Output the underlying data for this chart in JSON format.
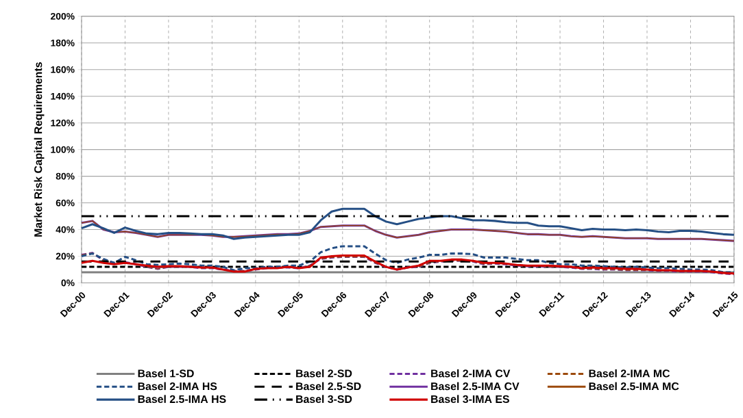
{
  "chart_data": {
    "type": "line",
    "ylabel": "Market Risk Capital Requirements",
    "x": [
      "2000-12",
      "2001-03",
      "2001-06",
      "2001-09",
      "2001-12",
      "2002-03",
      "2002-06",
      "2002-09",
      "2002-12",
      "2003-03",
      "2003-06",
      "2003-09",
      "2003-12",
      "2004-03",
      "2004-06",
      "2004-09",
      "2004-12",
      "2005-03",
      "2005-06",
      "2005-09",
      "2005-12",
      "2006-03",
      "2006-06",
      "2006-09",
      "2006-12",
      "2007-03",
      "2007-06",
      "2007-09",
      "2007-12",
      "2008-03",
      "2008-06",
      "2008-09",
      "2008-12",
      "2009-03",
      "2009-06",
      "2009-09",
      "2009-12",
      "2010-03",
      "2010-06",
      "2010-09",
      "2010-12",
      "2011-03",
      "2011-06",
      "2011-09",
      "2011-12",
      "2012-03",
      "2012-06",
      "2012-09",
      "2012-12",
      "2013-03",
      "2013-06",
      "2013-09",
      "2013-12",
      "2014-03",
      "2014-06",
      "2014-09",
      "2014-12",
      "2015-03",
      "2015-06",
      "2015-09",
      "2015-12"
    ],
    "xlim": [
      "2000-12",
      "2015-12"
    ],
    "xticks": [
      {
        "value": "2000-12",
        "label": "Dec-00"
      },
      {
        "value": "2001-12",
        "label": "Dec-01"
      },
      {
        "value": "2002-12",
        "label": "Dec-02"
      },
      {
        "value": "2003-12",
        "label": "Dec-03"
      },
      {
        "value": "2004-12",
        "label": "Dec-04"
      },
      {
        "value": "2005-12",
        "label": "Dec-05"
      },
      {
        "value": "2006-12",
        "label": "Dec-06"
      },
      {
        "value": "2007-12",
        "label": "Dec-07"
      },
      {
        "value": "2008-12",
        "label": "Dec-08"
      },
      {
        "value": "2009-12",
        "label": "Dec-09"
      },
      {
        "value": "2010-12",
        "label": "Dec-10"
      },
      {
        "value": "2011-12",
        "label": "Dec-11"
      },
      {
        "value": "2012-12",
        "label": "Dec-12"
      },
      {
        "value": "2013-12",
        "label": "Dec-13"
      },
      {
        "value": "2014-12",
        "label": "Dec-14"
      },
      {
        "value": "2015-12",
        "label": "Dec-15"
      }
    ],
    "ylim": [
      0,
      200
    ],
    "yticks": [
      {
        "value": 0,
        "label": "0%"
      },
      {
        "value": 20,
        "label": "20%"
      },
      {
        "value": 40,
        "label": "40%"
      },
      {
        "value": 60,
        "label": "60%"
      },
      {
        "value": 80,
        "label": "80%"
      },
      {
        "value": 100,
        "label": "100%"
      },
      {
        "value": 120,
        "label": "120%"
      },
      {
        "value": 140,
        "label": "140%"
      },
      {
        "value": 160,
        "label": "160%"
      },
      {
        "value": 180,
        "label": "180%"
      },
      {
        "value": 200,
        "label": "200%"
      }
    ],
    "grid": true,
    "legend": "bottom",
    "marker": "none",
    "series": [
      {
        "name": "Basel 1-SD",
        "color": "#808080",
        "line_style": "solid",
        "x": [
          "2000-12",
          "2015-12"
        ],
        "values": [
          8,
          8
        ]
      },
      {
        "name": "Basel 2-SD",
        "color": "#000000",
        "line_style": "dashed",
        "x": [
          "2000-12",
          "2015-12"
        ],
        "values": [
          12,
          12
        ]
      },
      {
        "name": "Basel 2-IMA CV",
        "color": "#7030a0",
        "line_style": "dashed",
        "values": [
          21,
          22.5,
          17,
          15,
          15.5,
          14,
          12,
          10.5,
          12,
          12,
          12,
          11,
          11,
          10,
          9,
          9,
          10,
          11,
          11.5,
          11.5,
          11,
          13,
          18,
          19,
          19.5,
          19.5,
          19.5,
          15,
          12,
          10,
          11.5,
          12,
          15,
          16,
          16.5,
          16.5,
          16,
          14,
          14.5,
          14,
          13,
          12.5,
          12.5,
          12,
          12,
          11.5,
          10.5,
          10.5,
          10,
          10,
          9.5,
          9.5,
          9.5,
          9,
          9,
          8.5,
          8.5,
          8.5,
          8,
          7,
          6.5
        ]
      },
      {
        "name": "Basel 2-IMA MC",
        "color": "#9c4a0c",
        "line_style": "dashed",
        "values": [
          21,
          22.5,
          17,
          15,
          15.5,
          14,
          12,
          10.5,
          12,
          12,
          12,
          11,
          11,
          10,
          9,
          9,
          10,
          11,
          11.5,
          11.5,
          11,
          13,
          18,
          19,
          19.5,
          19.5,
          19.5,
          15,
          12,
          10,
          11.5,
          12,
          15,
          16,
          16.5,
          16.5,
          16,
          14,
          14.5,
          14,
          13,
          12.5,
          12.5,
          12,
          12,
          11.5,
          10.5,
          10.5,
          10,
          10,
          9.5,
          9.5,
          9.5,
          9,
          9,
          8.5,
          8.5,
          8.5,
          8,
          7,
          6.5
        ]
      },
      {
        "name": "Basel 2-IMA HS",
        "color": "#254f85",
        "line_style": "dashed",
        "values": [
          20,
          22,
          18,
          15,
          19.5,
          17,
          14,
          13.5,
          14,
          14.5,
          14,
          13,
          13,
          12,
          9.5,
          11,
          11,
          12,
          12,
          13,
          13,
          16,
          23,
          26,
          27.5,
          27.5,
          27.5,
          22,
          17,
          15,
          17.5,
          19,
          21,
          21,
          22,
          22,
          21.5,
          19,
          19,
          19,
          18,
          17,
          17,
          15,
          14,
          14,
          13,
          13,
          12.5,
          12,
          11.5,
          12,
          11.5,
          11,
          11,
          10.5,
          10,
          10,
          9.5,
          8,
          8
        ]
      },
      {
        "name": "Basel 2.5-SD",
        "color": "#000000",
        "line_style": "long dashed",
        "x": [
          "2000-12",
          "2015-12"
        ],
        "values": [
          16,
          16
        ]
      },
      {
        "name": "Basel 2.5-IMA CV",
        "color": "#7030a0",
        "line_style": "solid",
        "values": [
          45,
          46.5,
          40,
          38,
          38.5,
          37.5,
          36,
          34.5,
          36,
          36,
          36,
          36,
          35.5,
          34.5,
          34.5,
          35,
          35.5,
          36,
          36.5,
          36.5,
          37,
          39,
          42,
          42.5,
          43,
          43,
          43,
          39,
          36,
          34,
          35,
          36,
          38,
          39,
          40,
          40,
          40,
          39.5,
          39,
          38.5,
          37.5,
          36.5,
          36.5,
          36,
          36,
          35,
          34.5,
          35,
          34.5,
          34,
          33.5,
          33.5,
          33.5,
          33,
          33,
          33,
          33,
          33,
          32.5,
          32,
          31.5
        ]
      },
      {
        "name": "Basel 2.5-IMA MC",
        "color": "#9c4a0c",
        "line_style": "solid",
        "values": [
          45,
          46.5,
          40,
          38,
          38.5,
          37.5,
          36,
          34.5,
          36,
          36,
          36,
          36,
          35.5,
          34.5,
          34.5,
          35,
          35.5,
          36,
          36.5,
          36.5,
          37,
          39,
          42,
          42.5,
          43,
          43,
          43,
          39,
          36,
          34,
          35,
          36,
          38,
          39,
          40,
          40,
          40,
          39.5,
          39,
          38.5,
          37.5,
          36.5,
          36.5,
          36,
          36,
          35,
          34.5,
          35,
          34.5,
          34,
          33.5,
          33.5,
          33.5,
          33,
          33,
          33,
          33,
          33,
          32.5,
          32,
          31.5
        ]
      },
      {
        "name": "Basel 2.5-IMA HS",
        "color": "#254f85",
        "line_style": "solid",
        "values": [
          41,
          44,
          41,
          37.5,
          41.5,
          39,
          37,
          36.5,
          37.5,
          37.5,
          37,
          36.5,
          36.5,
          35.5,
          33,
          34,
          34.5,
          35,
          35.5,
          36,
          36,
          38,
          47,
          53.5,
          55.5,
          55.5,
          55.5,
          50,
          46,
          44,
          46,
          48,
          49,
          50,
          50,
          48.5,
          47,
          47,
          46.5,
          45.5,
          45,
          45,
          43,
          42.5,
          42.5,
          41,
          39.5,
          40.5,
          40,
          40,
          39.5,
          40,
          39.5,
          38.5,
          38,
          39,
          39,
          38.5,
          37.5,
          36.5,
          36
        ]
      },
      {
        "name": "Basel 3-SD",
        "color": "#000000",
        "line_style": "dash dot dot",
        "x": [
          "2000-12",
          "2015-12"
        ],
        "values": [
          50,
          50
        ]
      },
      {
        "name": "Basel 3-IMA ES",
        "color": "#d00000",
        "line_style": "solid",
        "values": [
          15,
          16.5,
          15,
          14,
          15,
          14,
          13,
          12,
          12.5,
          12.5,
          12,
          11.5,
          11.5,
          10,
          8.5,
          8.5,
          10.5,
          11,
          11,
          12,
          11,
          12,
          19,
          20,
          20.5,
          20.5,
          20.5,
          16,
          12,
          10,
          11.5,
          13,
          16.5,
          16.5,
          17.5,
          17.5,
          16.5,
          15,
          15,
          14.5,
          13.5,
          13,
          13,
          13,
          12.5,
          12,
          11,
          11.5,
          11,
          11,
          10.5,
          10.5,
          10,
          9.5,
          9.5,
          9,
          9,
          9,
          8.5,
          7.5,
          7
        ]
      }
    ]
  }
}
